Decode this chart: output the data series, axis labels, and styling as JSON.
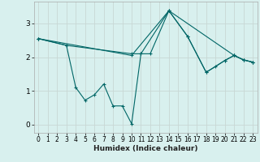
{
  "xlabel": "Humidex (Indice chaleur)",
  "bg_color": "#d8f0ee",
  "line_color": "#006666",
  "grid_color": "#c8d8d4",
  "xlim": [
    -0.5,
    23.5
  ],
  "ylim": [
    -0.25,
    3.65
  ],
  "yticks": [
    0,
    1,
    2,
    3
  ],
  "xticks": [
    0,
    1,
    2,
    3,
    4,
    5,
    6,
    7,
    8,
    9,
    10,
    11,
    12,
    13,
    14,
    15,
    16,
    17,
    18,
    19,
    20,
    21,
    22,
    23
  ],
  "series": [
    {
      "x": [
        0,
        3,
        10,
        11,
        14,
        16,
        18,
        20,
        21,
        22,
        23
      ],
      "y": [
        2.55,
        2.35,
        2.1,
        2.1,
        3.38,
        2.62,
        1.55,
        1.9,
        2.05,
        1.92,
        1.85
      ]
    },
    {
      "x": [
        0,
        10,
        14,
        21,
        22,
        23
      ],
      "y": [
        2.55,
        2.05,
        3.38,
        2.05,
        1.92,
        1.85
      ]
    },
    {
      "x": [
        0,
        3,
        4,
        5,
        6,
        7,
        8,
        9,
        10,
        11,
        12,
        14,
        16,
        18,
        19,
        20,
        21,
        22,
        23
      ],
      "y": [
        2.55,
        2.35,
        1.1,
        0.72,
        0.88,
        1.2,
        0.55,
        0.55,
        0.02,
        2.1,
        2.1,
        3.38,
        2.62,
        1.55,
        1.72,
        1.9,
        2.05,
        1.92,
        1.85
      ]
    }
  ]
}
